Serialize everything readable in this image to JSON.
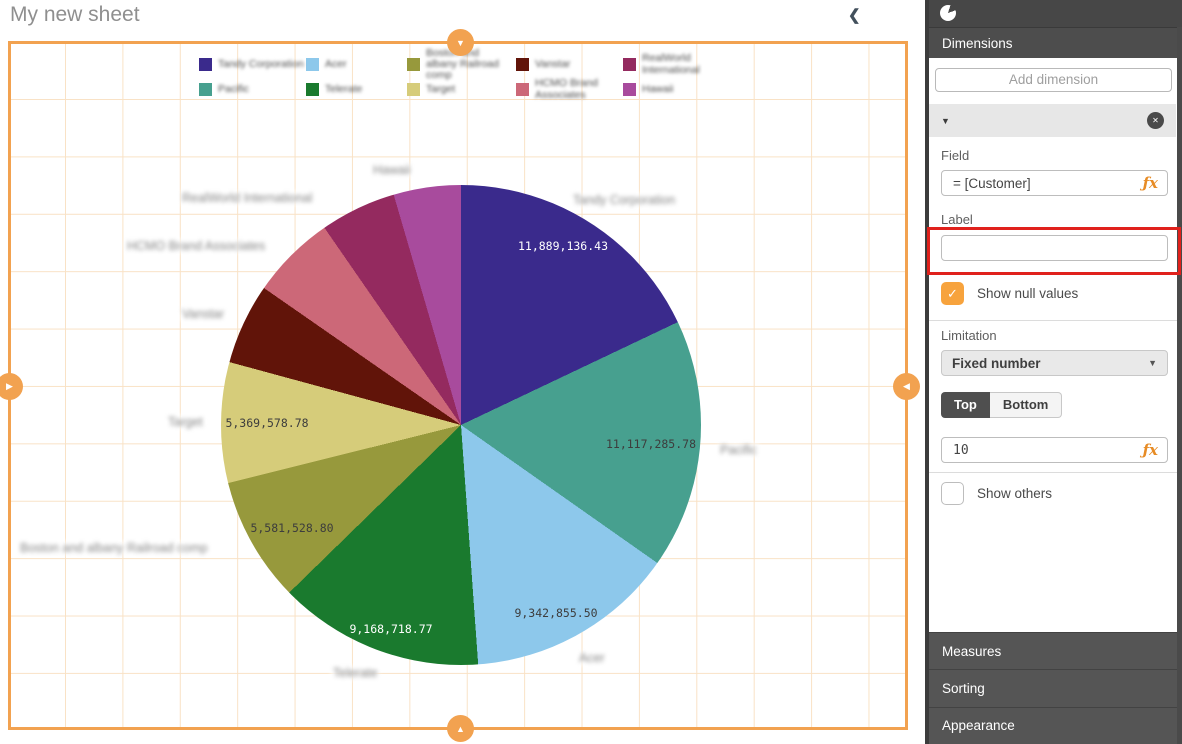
{
  "sheet": {
    "title": "My new sheet"
  },
  "chart_data": {
    "type": "pie",
    "title": "",
    "legend_position": "top",
    "dimension": "Customer",
    "slices": [
      {
        "label": "Tandy Corporation",
        "value": 11889136.43,
        "display_value": "11,889,136.43",
        "color": "#3a2a8c",
        "start_angle": 0,
        "end_angle": 64.6,
        "value_color": "#ffffff"
      },
      {
        "label": "Pacific",
        "value": 11117285.78,
        "display_value": "11,117,285.78",
        "color": "#47a08f",
        "start_angle": 64.6,
        "end_angle": 125.1,
        "value_color": "#3d3d3d"
      },
      {
        "label": "Acer",
        "value": 9342855.5,
        "display_value": "9,342,855.50",
        "color": "#8dc8eb",
        "start_angle": 125.1,
        "end_angle": 175.9,
        "value_color": "#3d3d3d"
      },
      {
        "label": "Telerate",
        "value": 9168718.77,
        "display_value": "9,168,718.77",
        "color": "#1a7a2e",
        "start_angle": 175.9,
        "end_angle": 225.7,
        "value_color": "#ffffff"
      },
      {
        "label": "Boston and albany Railroad comp",
        "value": 5581528.8,
        "display_value": "5,581,528.80",
        "color": "#97993c",
        "start_angle": 225.7,
        "end_angle": 256.0,
        "value_color": "#3d3d3d"
      },
      {
        "label": "Target",
        "value": 5369578.78,
        "display_value": "5,369,578.78",
        "color": "#d6cc7a",
        "start_angle": 256.0,
        "end_angle": 285.2,
        "value_color": "#3d3d3d"
      },
      {
        "label": "Vanstar",
        "value": 3604000,
        "display_value": "",
        "color": "#611409",
        "start_angle": 285.2,
        "end_angle": 304.8,
        "value_color": "#ffffff"
      },
      {
        "label": "HCMO Brand Associates",
        "value": 3770000,
        "display_value": "",
        "color": "#cc6878",
        "start_angle": 304.8,
        "end_angle": 325.3,
        "value_color": "#3d3d3d"
      },
      {
        "label": "RealWorld International",
        "value": 3384000,
        "display_value": "",
        "color": "#942a5f",
        "start_angle": 325.3,
        "end_angle": 343.7,
        "value_color": "#ffffff"
      },
      {
        "label": "Hawaii",
        "value": 2998000,
        "display_value": "",
        "color": "#a84b9d",
        "start_angle": 343.7,
        "end_angle": 360,
        "value_color": "#ffffff"
      }
    ]
  },
  "panel": {
    "dimensions_title": "Dimensions",
    "add_dimension_button": "Add dimension",
    "dimension": {
      "field_label": "Field",
      "field_expression": "= [Customer]",
      "label_label": "Label",
      "label_value": "",
      "show_null_values": "Show null values",
      "show_null_checked": true,
      "limitation_label": "Limitation",
      "limitation_selected": "Fixed number",
      "top_button": "Top",
      "bottom_button": "Bottom",
      "top_selected": true,
      "limit_value": "10",
      "show_others": "Show others",
      "show_others_checked": false
    },
    "fx_icon": "ƒx",
    "accordions": [
      "Measures",
      "Sorting",
      "Appearance"
    ]
  },
  "colors": {
    "selection_orange": "#f2a250",
    "grid_line": "#f9e2c6",
    "annotation_red": "#e0211c",
    "checkbox_orange": "#f7a33d",
    "panel_dark": "#4d4d4d"
  }
}
